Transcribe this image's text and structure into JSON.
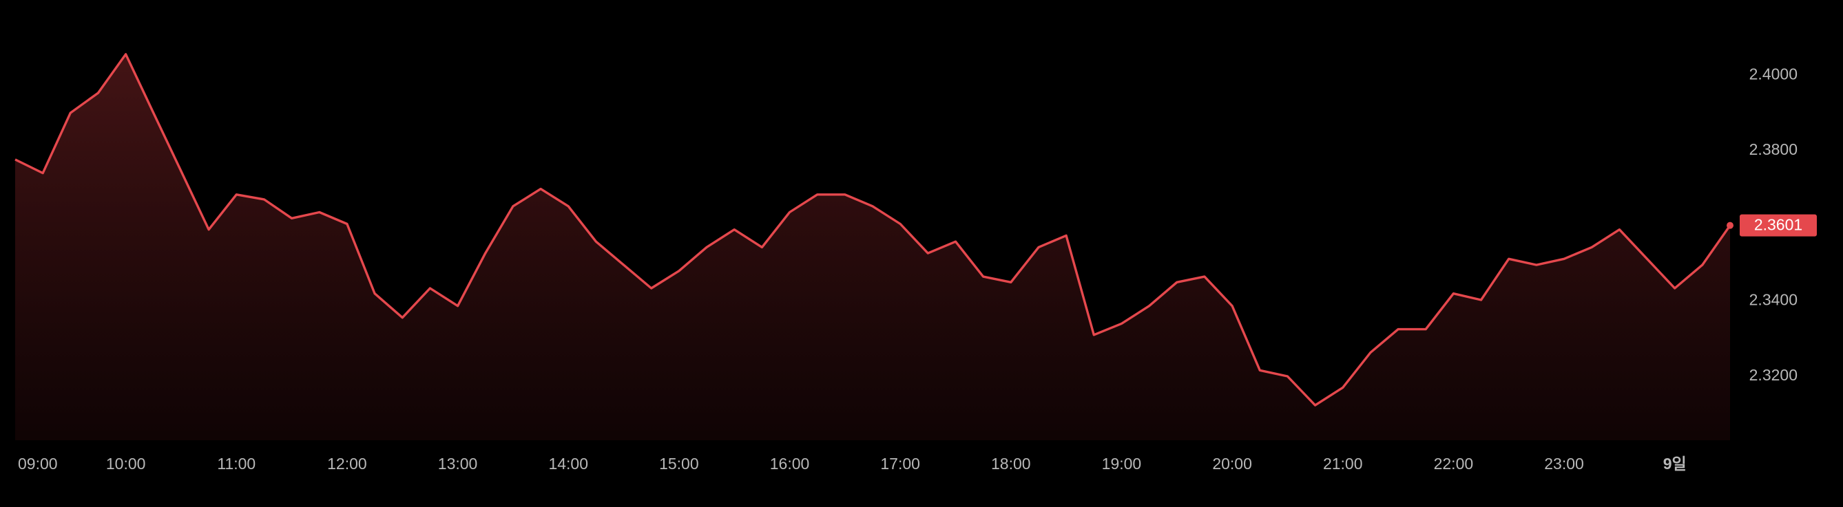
{
  "chart_data": {
    "type": "line",
    "x": [
      9,
      9.25,
      9.5,
      9.75,
      10,
      10.25,
      10.5,
      10.75,
      11,
      11.25,
      11.5,
      11.75,
      12,
      12.25,
      12.5,
      12.75,
      13,
      13.25,
      13.5,
      13.75,
      14,
      14.25,
      14.5,
      14.75,
      15,
      15.25,
      15.5,
      15.75,
      16,
      16.25,
      16.5,
      16.75,
      17,
      17.25,
      17.5,
      17.75,
      18,
      18.25,
      18.5,
      18.75,
      19,
      19.25,
      19.5,
      19.75,
      20,
      20.25,
      20.5,
      20.75,
      21,
      21.25,
      21.5,
      21.75,
      22,
      22.25,
      22.5,
      22.75,
      23,
      23.25,
      23.5,
      23.75,
      24,
      24.25,
      24.5
    ],
    "series": [
      {
        "color": "#e5484d",
        "values": [
          2.3776,
          2.374,
          2.39,
          2.3953,
          2.4056,
          2.39,
          2.3745,
          2.359,
          2.3683,
          2.367,
          2.362,
          2.3636,
          2.3605,
          2.342,
          2.3356,
          2.3434,
          2.3387,
          2.3527,
          2.3652,
          2.3698,
          2.3652,
          2.3558,
          2.3496,
          2.3434,
          2.348,
          2.3543,
          2.359,
          2.3543,
          2.3636,
          2.3683,
          2.3683,
          2.3652,
          2.3605,
          2.3527,
          2.3558,
          2.3465,
          2.345,
          2.3543,
          2.3574,
          2.331,
          2.334,
          2.3387,
          2.345,
          2.3465,
          2.3387,
          2.3216,
          2.32,
          2.3123,
          2.317,
          2.3263,
          2.3325,
          2.3325,
          2.342,
          2.3403,
          2.3512,
          2.3496,
          2.3512,
          2.3543,
          2.359,
          2.3512,
          2.3434,
          2.3496,
          2.3601
        ]
      }
    ],
    "xlim": [
      9,
      24.5
    ],
    "xticks": [
      {
        "value": 9,
        "label": "09:00"
      },
      {
        "value": 10,
        "label": "10:00"
      },
      {
        "value": 11,
        "label": "11:00"
      },
      {
        "value": 12,
        "label": "12:00"
      },
      {
        "value": 13,
        "label": "13:00"
      },
      {
        "value": 14,
        "label": "14:00"
      },
      {
        "value": 15,
        "label": "15:00"
      },
      {
        "value": 16,
        "label": "16:00"
      },
      {
        "value": 17,
        "label": "17:00"
      },
      {
        "value": 18,
        "label": "18:00"
      },
      {
        "value": 19,
        "label": "19:00"
      },
      {
        "value": 20,
        "label": "20:00"
      },
      {
        "value": 21,
        "label": "21:00"
      },
      {
        "value": 22,
        "label": "22:00"
      },
      {
        "value": 23,
        "label": "23:00"
      },
      {
        "value": 24,
        "label": "9일"
      }
    ],
    "ylim": [
      2.303,
      2.42
    ],
    "yticks": [
      {
        "value": 2.32,
        "label": "2.3200"
      },
      {
        "value": 2.34,
        "label": "2.3400"
      },
      {
        "value": 2.36,
        "label": "2.3600"
      },
      {
        "value": 2.38,
        "label": "2.3800"
      },
      {
        "value": 2.4,
        "label": "2.4000"
      }
    ],
    "last_price": {
      "value": 2.3601,
      "label": "2.3601"
    }
  }
}
